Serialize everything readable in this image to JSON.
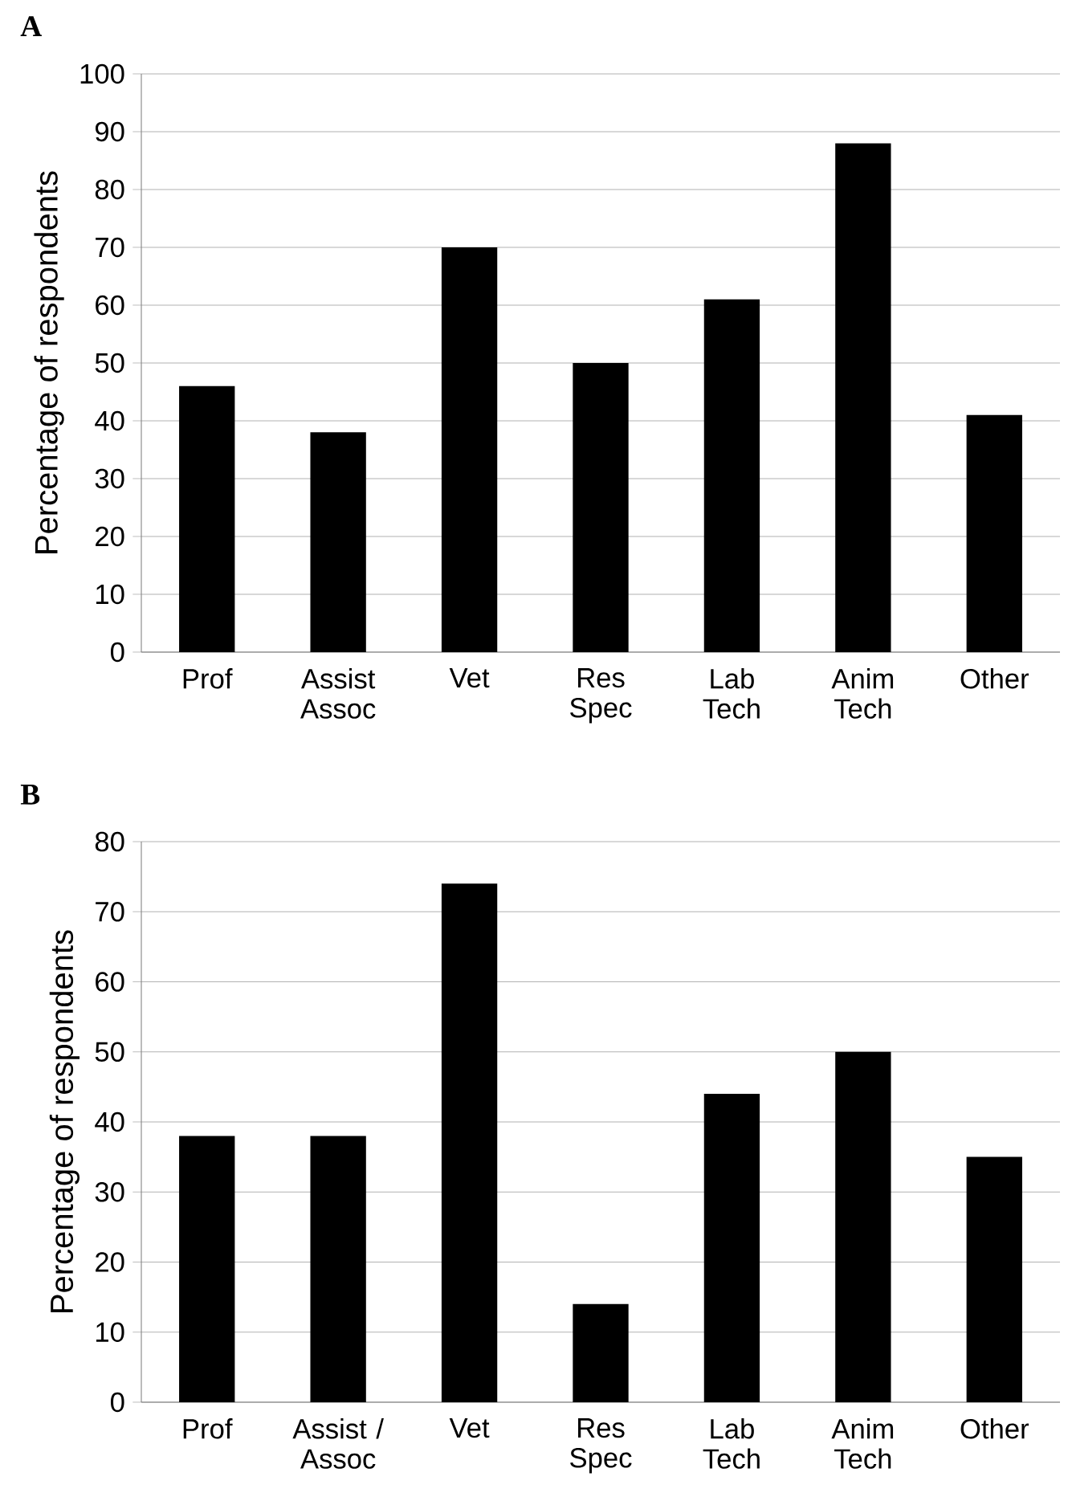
{
  "chart_data": [
    {
      "type": "bar",
      "title": "A",
      "ylabel": "Percentage of respondents",
      "categories": [
        "Prof",
        "Assist Assoc",
        "Vet",
        "Res Spec",
        "Lab Tech",
        "Anim Tech",
        "Other"
      ],
      "values": [
        46,
        38,
        70,
        50,
        61,
        88,
        41
      ],
      "color": "#000000",
      "ylim": [
        0,
        100
      ],
      "yticks": [
        0,
        10,
        20,
        30,
        40,
        50,
        60,
        70,
        80,
        90,
        100
      ],
      "grid": "y"
    },
    {
      "type": "bar",
      "title": "B",
      "ylabel": "Percentage of respondents",
      "categories": [
        "Prof",
        "Assist / Assoc",
        "Vet",
        "Res Spec",
        "Lab Tech",
        "Anim Tech",
        "Other"
      ],
      "values": [
        38,
        38,
        74,
        14,
        44,
        50,
        35
      ],
      "color": "#000000",
      "ylim": [
        0,
        80
      ],
      "yticks": [
        0,
        10,
        20,
        30,
        40,
        50,
        60,
        70,
        80
      ],
      "grid": "y"
    }
  ]
}
